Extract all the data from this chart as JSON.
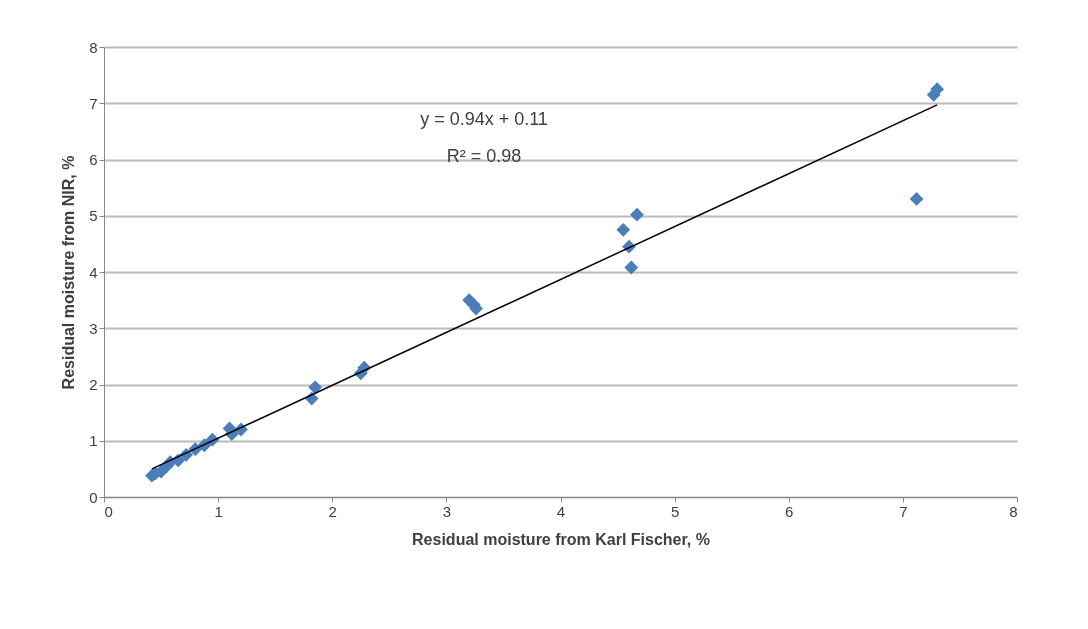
{
  "chart_data": {
    "type": "scatter",
    "xlabel": "Residual moisture from Karl Fischer, %",
    "ylabel": "Residual moisture from NIR, %",
    "annotations": [
      "y = 0.94x + 0.11",
      "R² = 0.98"
    ],
    "series": [
      {
        "color": "#4a7ebb",
        "marker": "diamond",
        "x": [
          0.42,
          0.45,
          0.5,
          0.55,
          0.58,
          0.65,
          0.72,
          0.8,
          0.88,
          0.95,
          1.1,
          1.12,
          1.2,
          1.82,
          1.85,
          2.25,
          2.28,
          3.2,
          3.24,
          3.26,
          4.55,
          4.6,
          4.62,
          4.67,
          7.12,
          7.27,
          7.3
        ],
        "values": [
          0.38,
          0.42,
          0.45,
          0.55,
          0.62,
          0.65,
          0.75,
          0.85,
          0.92,
          1.02,
          1.22,
          1.12,
          1.2,
          1.75,
          1.95,
          2.2,
          2.3,
          3.5,
          3.42,
          3.35,
          4.75,
          4.45,
          4.08,
          5.02,
          5.3,
          7.15,
          7.25
        ]
      },
      {
        "type": "line",
        "color": "#000000",
        "marker": "none",
        "x": [
          0.42,
          7.3
        ],
        "values": [
          0.5,
          6.97
        ]
      }
    ],
    "xlim": [
      0,
      8
    ],
    "xticks": [
      0,
      1,
      2,
      3,
      4,
      5,
      6,
      7,
      8
    ],
    "ylim": [
      0,
      8
    ],
    "yticks": [
      0,
      1,
      2,
      3,
      4,
      5,
      6,
      7,
      8
    ],
    "grid": "y"
  }
}
